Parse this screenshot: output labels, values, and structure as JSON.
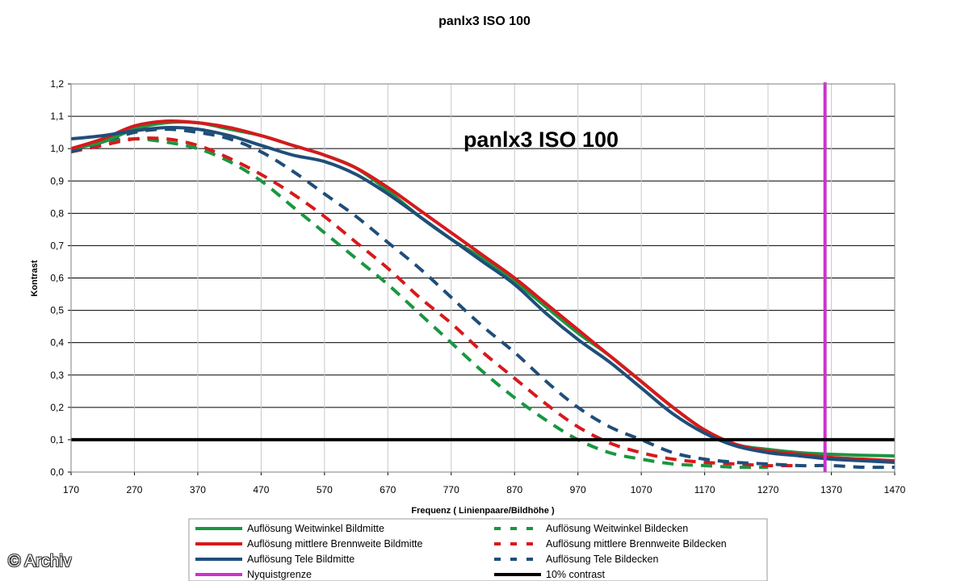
{
  "credit": "© Archiv",
  "chart_data": {
    "type": "line",
    "title": "panlx3 ISO 100",
    "annotation": "panlx3 ISO 100",
    "xlabel": "Frequenz ( Linienpaare/Bildhöhe )",
    "ylabel": "Kontrast",
    "xlim": [
      170,
      1470
    ],
    "ylim": [
      0,
      1.2
    ],
    "xticks": [
      170,
      270,
      370,
      470,
      570,
      670,
      770,
      870,
      970,
      1070,
      1170,
      1270,
      1370,
      1470
    ],
    "yticks": [
      "0,0",
      "0,1",
      "0,2",
      "0,3",
      "0,4",
      "0,5",
      "0,6",
      "0,7",
      "0,8",
      "0,9",
      "1,0",
      "1,1",
      "1,2"
    ],
    "grid": true,
    "legend_position": "bottom",
    "series": [
      {
        "name": "Auflösung Weitwinkel Bildmitte",
        "color": "#1a9641",
        "dash": "solid",
        "x": [
          170,
          220,
          270,
          320,
          370,
          420,
          470,
          520,
          570,
          620,
          670,
          720,
          770,
          820,
          870,
          920,
          970,
          1020,
          1070,
          1120,
          1170,
          1220,
          1270,
          1320,
          1370,
          1420,
          1470
        ],
        "y": [
          1.0,
          1.02,
          1.06,
          1.08,
          1.08,
          1.06,
          1.04,
          1.01,
          0.98,
          0.94,
          0.87,
          0.79,
          0.72,
          0.66,
          0.59,
          0.51,
          0.43,
          0.36,
          0.28,
          0.2,
          0.13,
          0.085,
          0.07,
          0.06,
          0.055,
          0.052,
          0.05
        ]
      },
      {
        "name": "Auflösung mittlere Brennweite Bildmitte",
        "color": "#d7191c",
        "dash": "solid",
        "x": [
          170,
          220,
          270,
          320,
          370,
          420,
          470,
          520,
          570,
          620,
          670,
          720,
          770,
          820,
          870,
          920,
          970,
          1020,
          1070,
          1120,
          1170,
          1220,
          1270,
          1320,
          1370,
          1420,
          1470
        ],
        "y": [
          1.0,
          1.03,
          1.07,
          1.085,
          1.08,
          1.065,
          1.04,
          1.01,
          0.98,
          0.94,
          0.88,
          0.81,
          0.74,
          0.67,
          0.6,
          0.52,
          0.44,
          0.36,
          0.28,
          0.2,
          0.13,
          0.085,
          0.065,
          0.055,
          0.045,
          0.04,
          0.035
        ]
      },
      {
        "name": "Auflösung Tele Bildmitte",
        "color": "#1f4e79",
        "dash": "solid",
        "x": [
          170,
          220,
          270,
          320,
          370,
          420,
          470,
          520,
          570,
          620,
          670,
          720,
          770,
          820,
          870,
          920,
          970,
          1020,
          1070,
          1120,
          1170,
          1220,
          1270,
          1320,
          1370,
          1420,
          1470
        ],
        "y": [
          1.03,
          1.04,
          1.055,
          1.065,
          1.06,
          1.04,
          1.01,
          0.98,
          0.96,
          0.92,
          0.86,
          0.79,
          0.72,
          0.65,
          0.58,
          0.49,
          0.41,
          0.34,
          0.26,
          0.18,
          0.12,
          0.08,
          0.06,
          0.05,
          0.04,
          0.035,
          0.03
        ]
      },
      {
        "name": "Auflösung Weitwinkel Bildecken",
        "color": "#1a9641",
        "dash": "dashed",
        "x": [
          170,
          220,
          270,
          320,
          370,
          420,
          470,
          520,
          570,
          620,
          670,
          720,
          770,
          820,
          870,
          920,
          970,
          1020,
          1070,
          1120,
          1170,
          1220,
          1270
        ],
        "y": [
          1.0,
          1.02,
          1.03,
          1.02,
          1.0,
          0.96,
          0.9,
          0.82,
          0.74,
          0.66,
          0.58,
          0.49,
          0.4,
          0.31,
          0.23,
          0.16,
          0.1,
          0.06,
          0.04,
          0.025,
          0.02,
          0.015,
          0.015
        ]
      },
      {
        "name": "Auflösung mittlere Brennweite Bildecken",
        "color": "#d7191c",
        "dash": "dashed",
        "x": [
          170,
          220,
          270,
          320,
          370,
          420,
          470,
          520,
          570,
          620,
          670,
          720,
          770,
          820,
          870,
          920,
          970,
          1020,
          1070,
          1120,
          1170,
          1220,
          1270,
          1320
        ],
        "y": [
          0.99,
          1.01,
          1.03,
          1.03,
          1.01,
          0.97,
          0.92,
          0.86,
          0.79,
          0.71,
          0.63,
          0.54,
          0.46,
          0.37,
          0.29,
          0.21,
          0.14,
          0.09,
          0.06,
          0.04,
          0.03,
          0.025,
          0.02,
          0.02
        ]
      },
      {
        "name": "Auflösung Tele Bildecken",
        "color": "#1f4e79",
        "dash": "dashed",
        "x": [
          170,
          220,
          270,
          320,
          370,
          420,
          470,
          520,
          570,
          620,
          670,
          720,
          770,
          820,
          870,
          920,
          970,
          1020,
          1070,
          1120,
          1170,
          1220,
          1270,
          1320,
          1370,
          1420,
          1470
        ],
        "y": [
          0.99,
          1.02,
          1.05,
          1.06,
          1.05,
          1.03,
          0.99,
          0.93,
          0.86,
          0.79,
          0.71,
          0.63,
          0.54,
          0.45,
          0.37,
          0.28,
          0.2,
          0.14,
          0.1,
          0.06,
          0.04,
          0.03,
          0.025,
          0.02,
          0.02,
          0.015,
          0.015
        ]
      }
    ],
    "reference_lines": [
      {
        "name": "Nyquistgrenze",
        "color": "#cc33cc",
        "orientation": "vertical",
        "x": 1360
      },
      {
        "name": "10% contrast",
        "color": "#000000",
        "orientation": "horizontal",
        "y": 0.1
      }
    ],
    "legend": [
      {
        "label": "Auflösung Weitwinkel Bildmitte",
        "color": "#1a9641",
        "dash": "solid"
      },
      {
        "label": "Auflösung Weitwinkel Bildecken",
        "color": "#1a9641",
        "dash": "dashed"
      },
      {
        "label": "Auflösung mittlere Brennweite Bildmitte",
        "color": "#d7191c",
        "dash": "solid"
      },
      {
        "label": "Auflösung mittlere Brennweite Bildecken",
        "color": "#d7191c",
        "dash": "dashed"
      },
      {
        "label": "Auflösung Tele Bildmitte",
        "color": "#1f4e79",
        "dash": "solid"
      },
      {
        "label": "Auflösung Tele Bildecken",
        "color": "#1f4e79",
        "dash": "dashed"
      },
      {
        "label": "Nyquistgrenze",
        "color": "#cc33cc",
        "dash": "solid"
      },
      {
        "label": "10% contrast",
        "color": "#000000",
        "dash": "solid"
      }
    ]
  }
}
